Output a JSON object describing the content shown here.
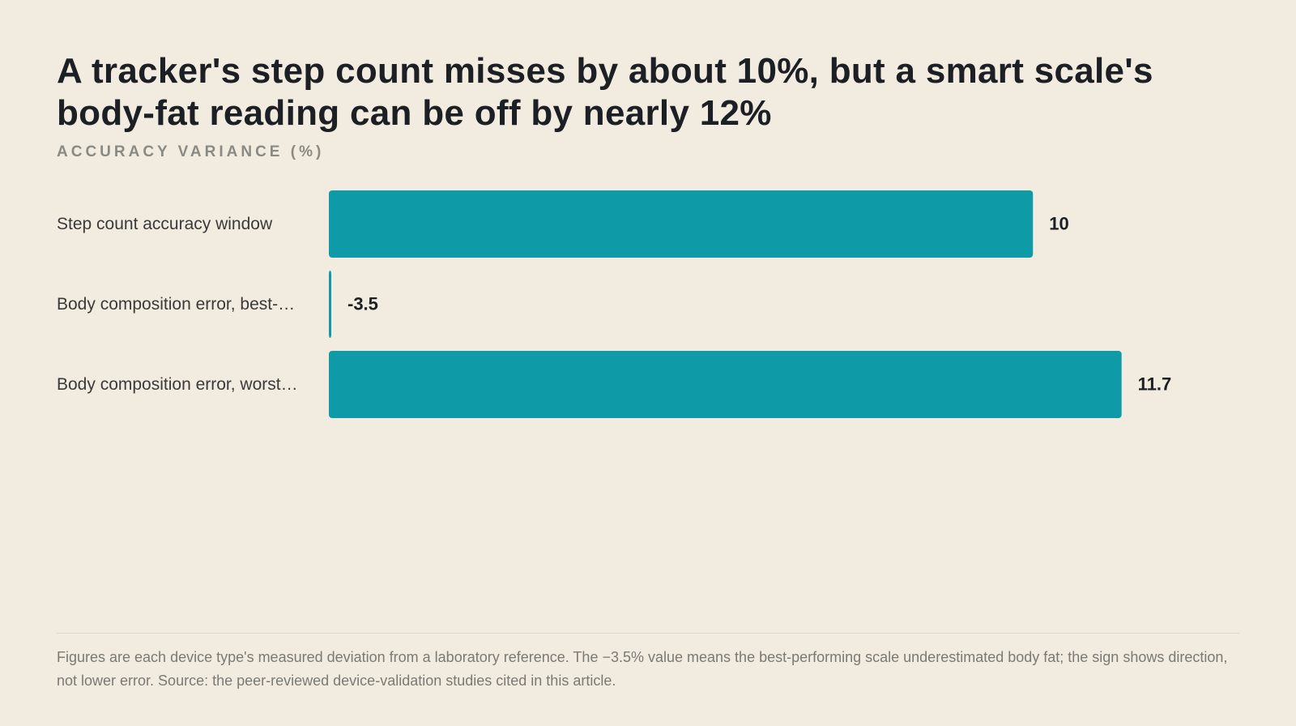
{
  "chart_data": {
    "type": "bar",
    "orientation": "horizontal",
    "title": "A tracker's step count misses by about 10%, but a smart scale's body-fat reading can be off by nearly 12%",
    "subtitle": "ACCURACY VARIANCE (%)",
    "categories": [
      "Step count accuracy window",
      "Body composition error, best-…",
      "Body composition error, worst…"
    ],
    "values": [
      10,
      -3.5,
      11.7
    ],
    "color": "#0f9aa8",
    "xlim": [
      -3.5,
      12
    ],
    "footnote": "Figures are each device type's measured deviation from a laboratory reference. The −3.5% value means the best-performing scale underestimated body fat; the sign shows direction, not lower error. Source: the peer-reviewed device-validation studies cited in this article."
  }
}
